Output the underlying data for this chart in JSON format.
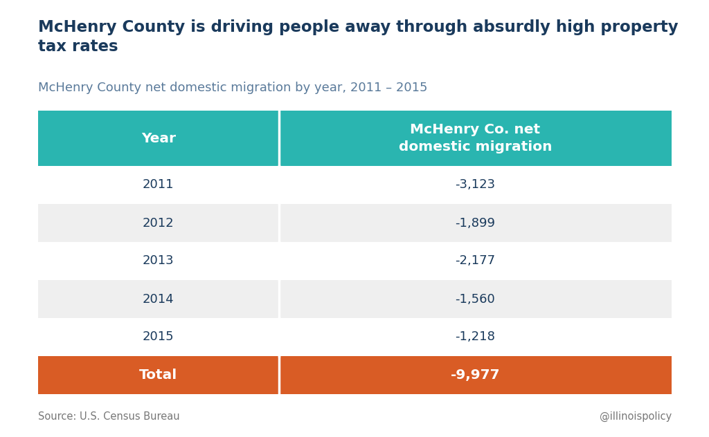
{
  "title": "McHenry County is driving people away through absurdly high property\ntax rates",
  "subtitle": "McHenry County net domestic migration by year, 2011 – 2015",
  "col1_header": "Year",
  "col2_header": "McHenry Co. net\ndomestic migration",
  "rows": [
    [
      "2011",
      "-3,123"
    ],
    [
      "2012",
      "-1,899"
    ],
    [
      "2013",
      "-2,177"
    ],
    [
      "2014",
      "-1,560"
    ],
    [
      "2015",
      "-1,218"
    ]
  ],
  "total_label": "Total",
  "total_value": "-9,977",
  "header_bg": "#2ab5b0",
  "header_text": "#ffffff",
  "row_bg_even": "#efefef",
  "row_bg_odd": "#ffffff",
  "total_bg": "#d95c25",
  "total_text": "#ffffff",
  "data_text": "#1a3a5c",
  "title_color": "#1a3a5c",
  "subtitle_color": "#5a7a9a",
  "source_text": "Source: U.S. Census Bureau",
  "watermark_text": "@illinoispolicy",
  "bg_color": "#ffffff",
  "divider_color": "#ffffff",
  "col_split": 0.38
}
